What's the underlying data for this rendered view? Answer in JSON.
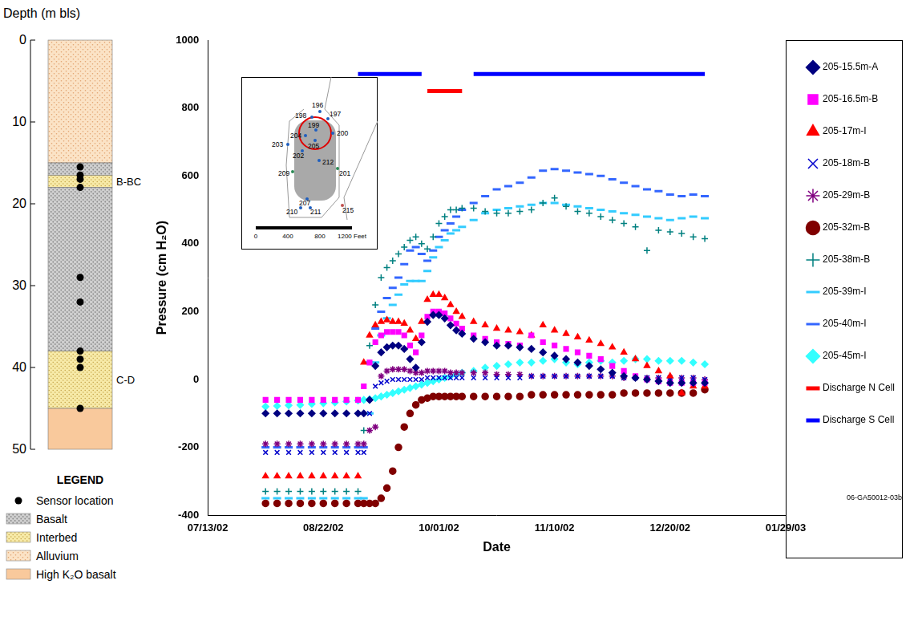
{
  "chart_data": {
    "type": "scatter",
    "x_label": "Date",
    "y_label": "Pressure (cm H₂O)",
    "x": [
      "2002-08-02",
      "2002-08-06",
      "2002-08-10",
      "2002-08-14",
      "2002-08-18",
      "2002-08-22",
      "2002-08-26",
      "2002-08-30",
      "2002-09-03",
      "2002-09-05",
      "2002-09-07",
      "2002-09-09",
      "2002-09-11",
      "2002-09-13",
      "2002-09-15",
      "2002-09-17",
      "2002-09-19",
      "2002-09-21",
      "2002-09-23",
      "2002-09-25",
      "2002-09-27",
      "2002-09-29",
      "2002-10-01",
      "2002-10-03",
      "2002-10-05",
      "2002-10-07",
      "2002-10-09",
      "2002-10-13",
      "2002-10-17",
      "2002-10-21",
      "2002-10-25",
      "2002-10-29",
      "2002-11-02",
      "2002-11-06",
      "2002-11-10",
      "2002-11-14",
      "2002-11-18",
      "2002-11-22",
      "2002-11-26",
      "2002-11-30",
      "2002-12-04",
      "2002-12-08",
      "2002-12-12",
      "2002-12-16",
      "2002-12-20",
      "2002-12-24",
      "2002-12-28",
      "2003-01-01"
    ],
    "xlim": [
      "2002-07-13",
      "2003-01-29"
    ],
    "xticks": [
      {
        "value": "2002-07-13",
        "label": "07/13/02"
      },
      {
        "value": "2002-08-22",
        "label": "08/22/02"
      },
      {
        "value": "2002-10-01",
        "label": "10/01/02"
      },
      {
        "value": "2002-11-10",
        "label": "11/10/02"
      },
      {
        "value": "2002-12-20",
        "label": "12/20/02"
      },
      {
        "value": "2003-01-29",
        "label": "01/29/03"
      }
    ],
    "ylim": [
      -400,
      1000
    ],
    "yticks": [
      -400,
      -200,
      0,
      200,
      400,
      600,
      800,
      1000
    ],
    "grid": false,
    "legend": "right",
    "series": [
      {
        "name": "205-15.5m-A",
        "color": "#000080",
        "marker": "diamond",
        "values": [
          -100,
          -100,
          -100,
          -100,
          -100,
          -100,
          -100,
          -100,
          -100,
          -100,
          -60,
          40,
          80,
          95,
          100,
          100,
          90,
          60,
          35,
          110,
          170,
          190,
          190,
          180,
          160,
          145,
          135,
          120,
          110,
          100,
          100,
          95,
          90,
          80,
          70,
          60,
          50,
          40,
          30,
          20,
          10,
          5,
          0,
          -5,
          -10,
          -10,
          -10,
          -10
        ]
      },
      {
        "name": "205-16.5m-B",
        "color": "#ff00ff",
        "marker": "square",
        "values": [
          -60,
          -60,
          -60,
          -60,
          -60,
          -60,
          -60,
          -60,
          -60,
          -20,
          50,
          110,
          130,
          140,
          140,
          140,
          130,
          100,
          80,
          130,
          185,
          200,
          200,
          195,
          180,
          165,
          150,
          130,
          120,
          110,
          105,
          100,
          130,
          110,
          100,
          90,
          80,
          70,
          60,
          40,
          25,
          10,
          0,
          -5,
          -10,
          -10,
          -10,
          -10
        ]
      },
      {
        "name": "205-17m-I",
        "color": "#ff0000",
        "marker": "triangle",
        "values": [
          -285,
          -285,
          -285,
          -285,
          -285,
          -285,
          -285,
          -285,
          -285,
          50,
          130,
          160,
          170,
          175,
          170,
          170,
          165,
          145,
          120,
          170,
          235,
          250,
          250,
          240,
          220,
          200,
          185,
          170,
          160,
          150,
          145,
          140,
          130,
          160,
          145,
          135,
          125,
          115,
          105,
          95,
          80,
          60,
          40,
          25,
          10,
          -40,
          -20,
          -20
        ]
      },
      {
        "name": "205-18m-B",
        "color": "#0000cc",
        "marker": "x",
        "values": [
          -215,
          -215,
          -215,
          -215,
          -215,
          -215,
          -215,
          -215,
          -215,
          -215,
          -100,
          -20,
          -10,
          -5,
          0,
          0,
          0,
          0,
          0,
          0,
          5,
          5,
          5,
          5,
          5,
          5,
          5,
          5,
          5,
          5,
          5,
          5,
          10,
          10,
          10,
          10,
          10,
          10,
          10,
          10,
          5,
          5,
          5,
          5,
          5,
          5,
          5,
          0
        ]
      },
      {
        "name": "205-29m-B",
        "color": "#800080",
        "marker": "asterisk",
        "values": [
          -190,
          -190,
          -190,
          -190,
          -190,
          -190,
          -190,
          -190,
          -190,
          -190,
          -150,
          -140,
          10,
          25,
          30,
          30,
          30,
          25,
          20,
          20,
          25,
          25,
          25,
          25,
          20,
          20,
          20,
          20,
          20,
          15,
          15,
          15,
          10,
          10,
          10,
          10,
          10,
          10,
          10,
          10,
          5,
          5,
          5,
          5,
          5,
          5,
          5,
          0
        ]
      },
      {
        "name": "205-32m-B",
        "color": "#800000",
        "marker": "circle",
        "values": [
          -365,
          -365,
          -365,
          -365,
          -365,
          -365,
          -365,
          -365,
          -365,
          -365,
          -365,
          -365,
          -350,
          -320,
          -270,
          -200,
          -140,
          -100,
          -75,
          -60,
          -55,
          -50,
          -50,
          -50,
          -50,
          -50,
          -50,
          -50,
          -50,
          -50,
          -50,
          -50,
          -45,
          -45,
          -45,
          -45,
          -45,
          -45,
          -45,
          -45,
          -40,
          -40,
          -40,
          -40,
          -40,
          -40,
          -40,
          -30
        ]
      },
      {
        "name": "205-38m-B",
        "color": "#008080",
        "marker": "plus",
        "values": [
          -330,
          -330,
          -330,
          -330,
          -330,
          -330,
          -330,
          -330,
          -330,
          -150,
          100,
          220,
          300,
          330,
          350,
          370,
          390,
          410,
          420,
          400,
          385,
          420,
          460,
          480,
          500,
          500,
          505,
          505,
          495,
          490,
          490,
          495,
          500,
          520,
          535,
          510,
          495,
          490,
          480,
          470,
          460,
          450,
          380,
          440,
          435,
          430,
          420,
          415
        ]
      },
      {
        "name": "205-39m-I",
        "color": "#33ccff",
        "marker": "dash",
        "values": [
          -350,
          -350,
          -350,
          -350,
          -350,
          -350,
          -350,
          -350,
          -350,
          -350,
          -100,
          50,
          130,
          180,
          220,
          250,
          280,
          290,
          290,
          290,
          320,
          360,
          390,
          410,
          430,
          440,
          450,
          470,
          490,
          500,
          505,
          510,
          515,
          520,
          520,
          515,
          510,
          505,
          500,
          495,
          490,
          485,
          480,
          475,
          470,
          475,
          480,
          475
        ]
      },
      {
        "name": "205-40m-I",
        "color": "#3366ff",
        "marker": "dash",
        "values": [
          -200,
          -200,
          -200,
          -200,
          -200,
          -200,
          -200,
          -200,
          -200,
          -200,
          50,
          150,
          200,
          240,
          270,
          300,
          340,
          380,
          390,
          370,
          350,
          380,
          420,
          440,
          460,
          480,
          500,
          520,
          540,
          560,
          570,
          580,
          595,
          615,
          620,
          615,
          610,
          605,
          600,
          590,
          580,
          570,
          560,
          555,
          545,
          540,
          545,
          540
        ]
      },
      {
        "name": "205-45m-I",
        "color": "#33ffff",
        "marker": "diamond",
        "values": [
          -80,
          -78,
          -76,
          -75,
          -72,
          -70,
          -68,
          -65,
          -62,
          -60,
          -58,
          -55,
          -50,
          -45,
          -40,
          -35,
          -30,
          -25,
          -20,
          -15,
          -10,
          -5,
          0,
          5,
          10,
          15,
          20,
          25,
          35,
          40,
          45,
          50,
          50,
          55,
          60,
          50,
          45,
          50,
          55,
          50,
          55,
          60,
          60,
          55,
          55,
          55,
          50,
          45
        ]
      },
      {
        "name": "Discharge N Cell",
        "color": "#ff0000",
        "type": "line",
        "line_style": "solid",
        "values": [
          null,
          null,
          null,
          null,
          null,
          null,
          null,
          null,
          null,
          null,
          null,
          null,
          null,
          null,
          null,
          null,
          null,
          null,
          null,
          null,
          850,
          850,
          850,
          850,
          850,
          850,
          850,
          null,
          null,
          null,
          null,
          null,
          null,
          null,
          null,
          null,
          null,
          null,
          null,
          null,
          null,
          null,
          null,
          null,
          null,
          null,
          null,
          null
        ]
      },
      {
        "name": "Discharge S Cell",
        "color": "#0000ff",
        "type": "line",
        "line_style": "solid",
        "values": [
          null,
          null,
          null,
          null,
          null,
          null,
          null,
          null,
          900,
          900,
          900,
          900,
          900,
          900,
          900,
          900,
          900,
          900,
          900,
          900,
          null,
          null,
          null,
          null,
          null,
          null,
          null,
          900,
          900,
          900,
          900,
          900,
          900,
          900,
          900,
          900,
          900,
          900,
          900,
          900,
          900,
          900,
          900,
          900,
          900,
          900,
          900,
          900
        ]
      }
    ]
  },
  "depth_column": {
    "title": "Depth (m bls)",
    "ylim": [
      0,
      50
    ],
    "yticks": [
      0,
      10,
      20,
      30,
      40,
      50
    ],
    "layers": [
      {
        "unit": "Alluvium",
        "top": 0,
        "bottom": 15
      },
      {
        "unit": "Basalt",
        "top": 15,
        "bottom": 16.5
      },
      {
        "unit": "Interbed",
        "top": 16.5,
        "bottom": 18,
        "label": "B-BC"
      },
      {
        "unit": "Basalt",
        "top": 18,
        "bottom": 38
      },
      {
        "unit": "Interbed",
        "top": 38,
        "bottom": 45,
        "label": "C-D"
      },
      {
        "unit": "High K₂O basalt",
        "top": 45,
        "bottom": 50
      }
    ],
    "sensor_depths": [
      15.5,
      16.5,
      17,
      18,
      29,
      32,
      38,
      39,
      40,
      45
    ],
    "legend": {
      "title": "LEGEND",
      "items": [
        "Sensor location",
        "Basalt",
        "Interbed",
        "Alluvium",
        "High K₂O basalt"
      ]
    }
  },
  "inset_map": {
    "wells": [
      "196",
      "197",
      "198",
      "199",
      "200",
      "201",
      "202",
      "203",
      "204",
      "205",
      "207",
      "209",
      "210",
      "211",
      "212",
      "215"
    ],
    "scale_ticks": [
      0,
      400,
      800,
      {
        "value": 1200,
        "label": "1200 Feet"
      }
    ]
  },
  "figure_id": "06-GA50012-03b"
}
